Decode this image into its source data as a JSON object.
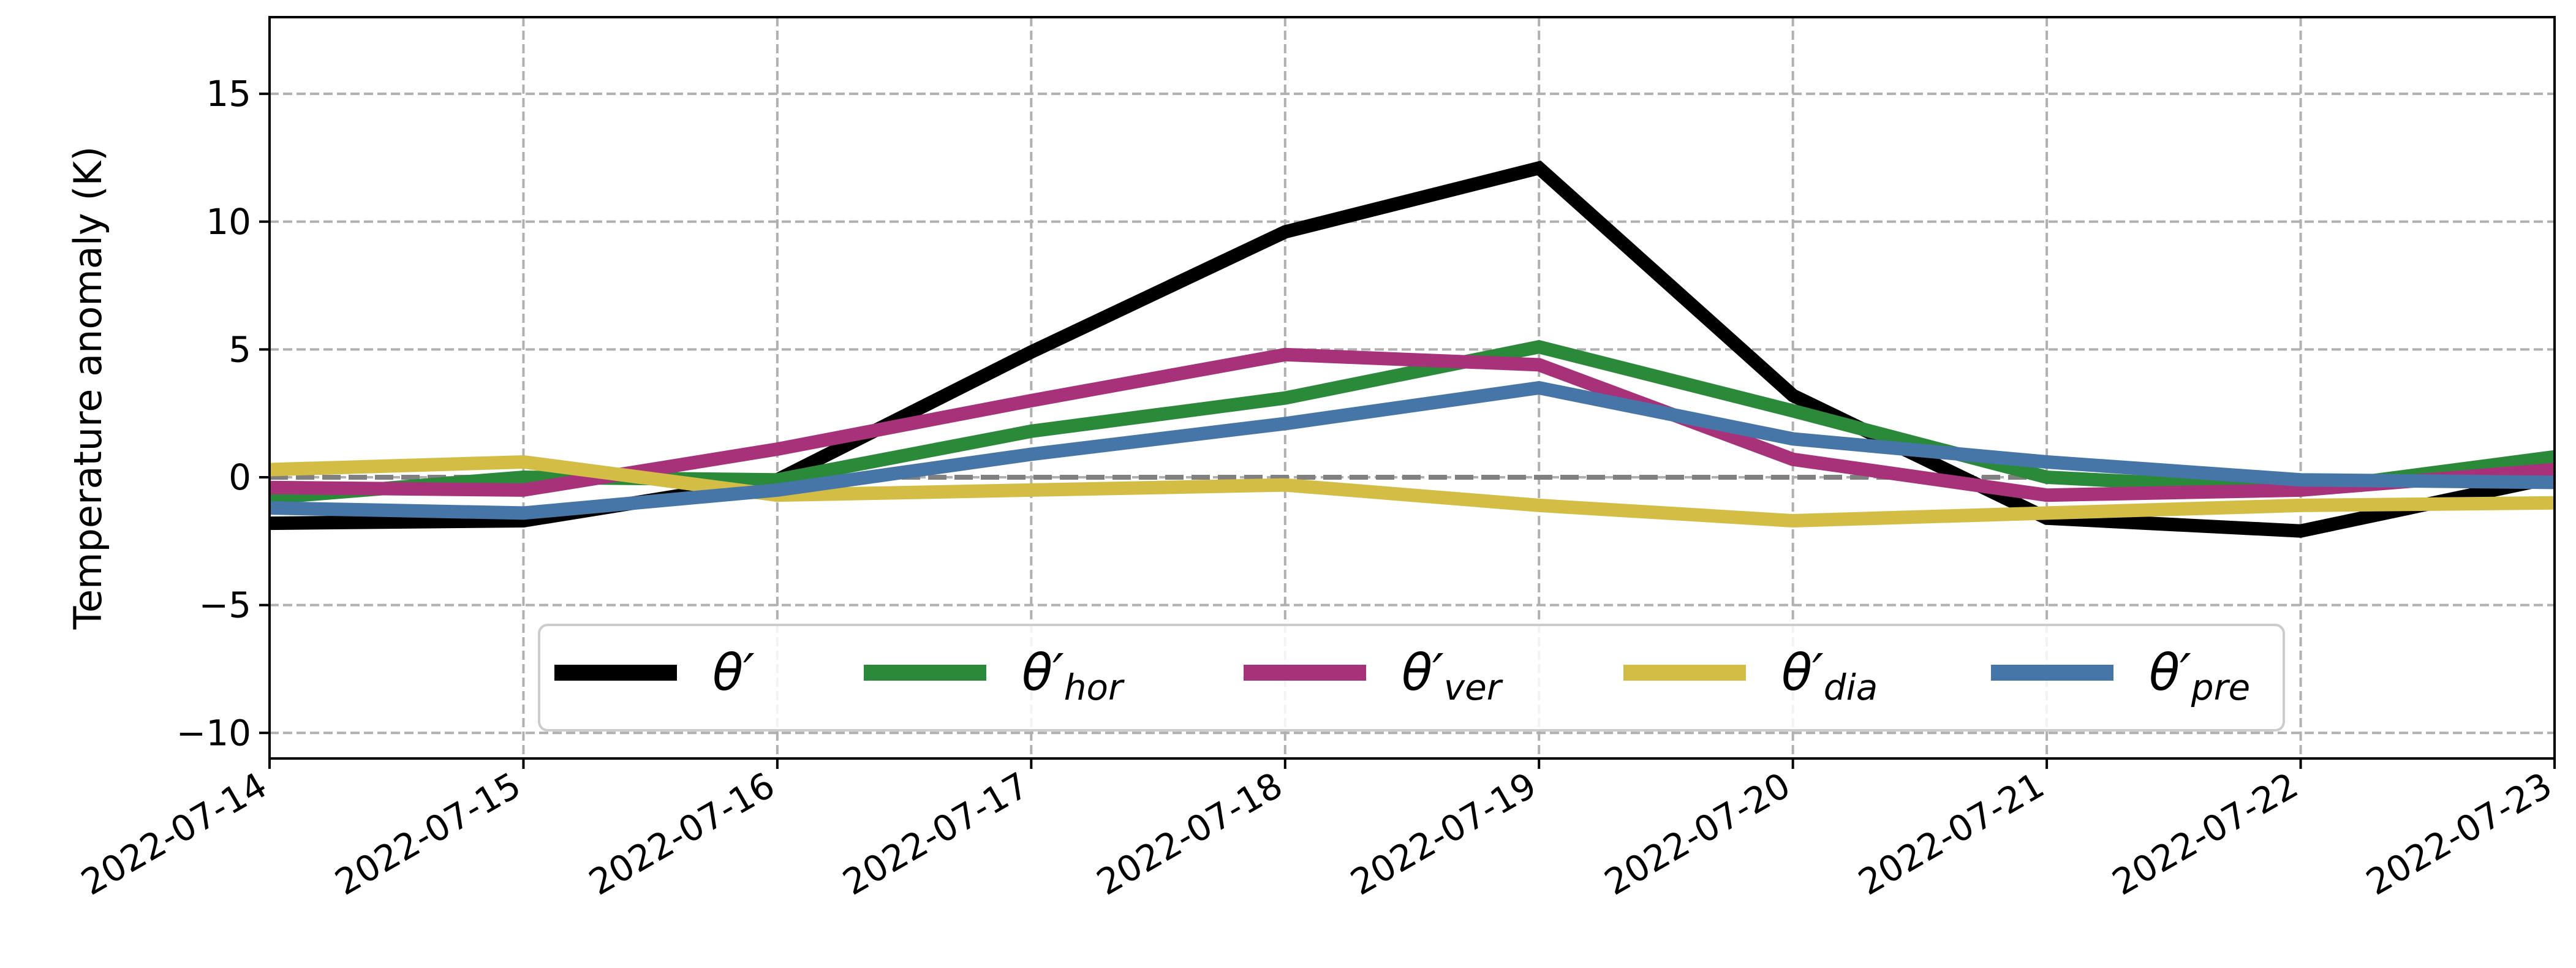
{
  "chart_data": {
    "type": "line",
    "ylabel": "Temperature anomaly (K)",
    "xlabel": "",
    "title": "",
    "x": [
      "2022-07-14",
      "2022-07-15",
      "2022-07-16",
      "2022-07-17",
      "2022-07-18",
      "2022-07-19",
      "2022-07-20",
      "2022-07-21",
      "2022-07-22",
      "2022-07-23"
    ],
    "xlim": [
      "2022-07-14",
      "2022-07-23"
    ],
    "ylim": [
      -11,
      18
    ],
    "yticks": [
      -10,
      -5,
      0,
      5,
      10,
      15
    ],
    "yticklabels": [
      "−10",
      "−5",
      "0",
      "5",
      "10",
      "15"
    ],
    "grid": true,
    "zero_line": 0,
    "legend_position": "lower center",
    "series": [
      {
        "name": "θ′",
        "base": "θ′",
        "sub": "",
        "color": "#000000",
        "values": [
          -1.8,
          -1.7,
          -0.1,
          4.9,
          9.6,
          12.1,
          3.2,
          -1.6,
          -2.1,
          0.0
        ]
      },
      {
        "name": "θ′hor",
        "base": "θ′",
        "sub": "hor",
        "color": "#2a8a3a",
        "values": [
          -0.8,
          0.0,
          -0.1,
          1.8,
          3.1,
          5.1,
          2.6,
          0.0,
          -0.5,
          0.8
        ]
      },
      {
        "name": "θ′ver",
        "base": "θ′",
        "sub": "ver",
        "color": "#a8327a",
        "values": [
          -0.4,
          -0.5,
          1.1,
          3.0,
          4.8,
          4.4,
          0.7,
          -0.7,
          -0.5,
          0.3
        ]
      },
      {
        "name": "θ′dia",
        "base": "θ′",
        "sub": "dia",
        "color": "#d4bd45",
        "values": [
          0.3,
          0.6,
          -0.7,
          -0.5,
          -0.3,
          -1.1,
          -1.7,
          -1.4,
          -1.1,
          -1.0
        ]
      },
      {
        "name": "θ′pre",
        "base": "θ′",
        "sub": "pre",
        "color": "#4676a8",
        "values": [
          -1.2,
          -1.4,
          -0.5,
          0.9,
          2.1,
          3.5,
          1.5,
          0.6,
          -0.1,
          -0.2
        ]
      }
    ]
  }
}
